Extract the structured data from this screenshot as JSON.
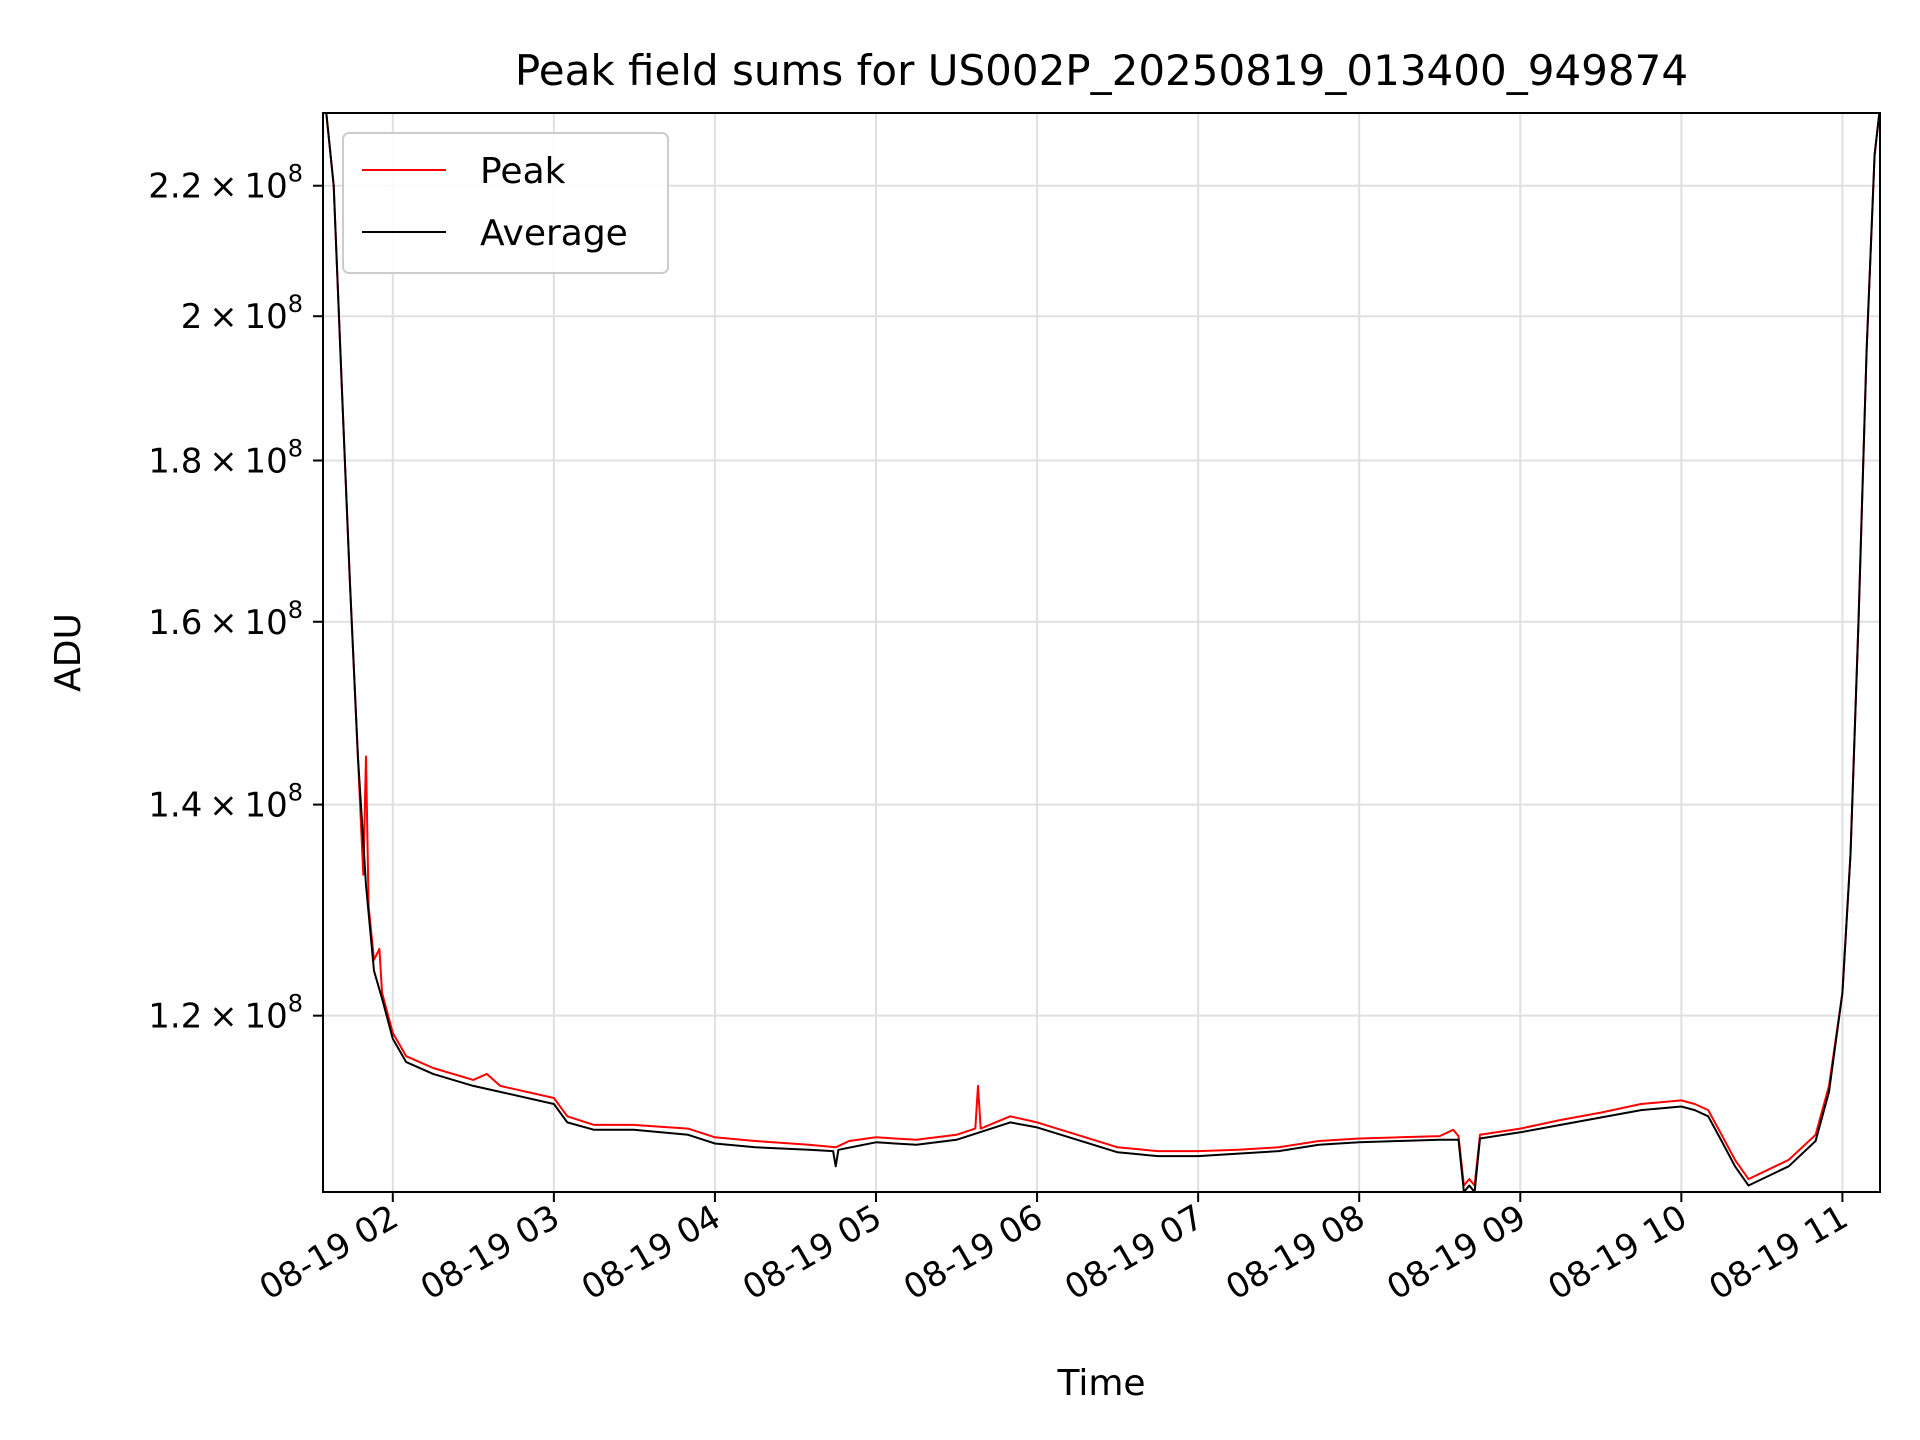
{
  "chart_data": {
    "type": "line",
    "title": "Peak field sums for US002P_20250819_013400_949874",
    "xlabel": "Time",
    "ylabel": "ADU",
    "y_scale": "log",
    "x_range": [
      "2025-08-19T01:34",
      "2025-08-19T11:14"
    ],
    "ylim": [
      105500000.0,
      232000000.0
    ],
    "x_ticks": [
      "08-19 02",
      "08-19 03",
      "08-19 04",
      "08-19 05",
      "08-19 06",
      "08-19 07",
      "08-19 08",
      "08-19 09",
      "08-19 10",
      "08-19 11"
    ],
    "x_tick_rotation_deg": 30,
    "y_ticks": [
      {
        "value": 120000000.0,
        "mant": "1.2",
        "exp": "8"
      },
      {
        "value": 140000000.0,
        "mant": "1.4",
        "exp": "8"
      },
      {
        "value": 160000000.0,
        "mant": "1.6",
        "exp": "8"
      },
      {
        "value": 180000000.0,
        "mant": "1.8",
        "exp": "8"
      },
      {
        "value": 200000000.0,
        "mant": "2",
        "exp": "8"
      },
      {
        "value": 220000000.0,
        "mant": "2.2",
        "exp": "8"
      }
    ],
    "grid": true,
    "legend_position": "top-left",
    "series": [
      {
        "name": "Peak",
        "color": "#ff0000",
        "points": [
          [
            "01:35",
            233000000.0
          ],
          [
            "01:38",
            220000000.0
          ],
          [
            "01:41",
            190000000.0
          ],
          [
            "01:44",
            165000000.0
          ],
          [
            "01:47",
            145000000.0
          ],
          [
            "01:49",
            133000000.0
          ],
          [
            "01:50",
            145000000.0
          ],
          [
            "01:51",
            130000000.0
          ],
          [
            "01:53",
            125000000.0
          ],
          [
            "01:55",
            126000000.0
          ],
          [
            "01:56",
            122000000.0
          ],
          [
            "02:00",
            118500000.0
          ],
          [
            "02:05",
            116500000.0
          ],
          [
            "02:15",
            115500000.0
          ],
          [
            "02:30",
            114500000.0
          ],
          [
            "02:35",
            115000000.0
          ],
          [
            "02:40",
            114000000.0
          ],
          [
            "03:00",
            113000000.0
          ],
          [
            "03:05",
            111500000.0
          ],
          [
            "03:15",
            110800000.0
          ],
          [
            "03:30",
            110800000.0
          ],
          [
            "03:50",
            110500000.0
          ],
          [
            "04:00",
            109800000.0
          ],
          [
            "04:15",
            109500000.0
          ],
          [
            "04:35",
            109200000.0
          ],
          [
            "04:45",
            109000000.0
          ],
          [
            "04:50",
            109500000.0
          ],
          [
            "05:00",
            109800000.0
          ],
          [
            "05:15",
            109600000.0
          ],
          [
            "05:30",
            110000000.0
          ],
          [
            "05:37",
            110500000.0
          ],
          [
            "05:38",
            114000000.0
          ],
          [
            "05:39",
            110500000.0
          ],
          [
            "05:50",
            111500000.0
          ],
          [
            "06:00",
            111000000.0
          ],
          [
            "06:15",
            110000000.0
          ],
          [
            "06:30",
            109000000.0
          ],
          [
            "06:45",
            108700000.0
          ],
          [
            "07:00",
            108700000.0
          ],
          [
            "07:15",
            108800000.0
          ],
          [
            "07:30",
            109000000.0
          ],
          [
            "07:45",
            109500000.0
          ],
          [
            "08:00",
            109700000.0
          ],
          [
            "08:15",
            109800000.0
          ],
          [
            "08:30",
            109900000.0
          ],
          [
            "08:35",
            110400000.0
          ],
          [
            "08:37",
            109900000.0
          ],
          [
            "08:39",
            106000000.0
          ],
          [
            "08:41",
            106500000.0
          ],
          [
            "08:43",
            106000000.0
          ],
          [
            "08:45",
            110000000.0
          ],
          [
            "09:00",
            110500000.0
          ],
          [
            "09:15",
            111200000.0
          ],
          [
            "09:30",
            111800000.0
          ],
          [
            "09:45",
            112500000.0
          ],
          [
            "10:00",
            112800000.0
          ],
          [
            "10:05",
            112500000.0
          ],
          [
            "10:10",
            112000000.0
          ],
          [
            "10:15",
            110000000.0
          ],
          [
            "10:20",
            108000000.0
          ],
          [
            "10:25",
            106500000.0
          ],
          [
            "10:30",
            107000000.0
          ],
          [
            "10:40",
            108000000.0
          ],
          [
            "10:50",
            110000000.0
          ],
          [
            "10:55",
            114000000.0
          ],
          [
            "11:00",
            122000000.0
          ],
          [
            "11:03",
            135000000.0
          ],
          [
            "11:06",
            160000000.0
          ],
          [
            "11:09",
            195000000.0
          ],
          [
            "11:12",
            225000000.0
          ],
          [
            "11:14",
            233000000.0
          ]
        ]
      },
      {
        "name": "Average",
        "color": "#000000",
        "points": [
          [
            "01:35",
            233000000.0
          ],
          [
            "01:38",
            220000000.0
          ],
          [
            "01:41",
            190000000.0
          ],
          [
            "01:44",
            165000000.0
          ],
          [
            "01:47",
            145000000.0
          ],
          [
            "01:50",
            132000000.0
          ],
          [
            "01:53",
            124000000.0
          ],
          [
            "01:56",
            121500000.0
          ],
          [
            "02:00",
            118000000.0
          ],
          [
            "02:05",
            116000000.0
          ],
          [
            "02:15",
            115000000.0
          ],
          [
            "02:30",
            114000000.0
          ],
          [
            "02:40",
            113500000.0
          ],
          [
            "03:00",
            112500000.0
          ],
          [
            "03:05",
            111000000.0
          ],
          [
            "03:15",
            110400000.0
          ],
          [
            "03:30",
            110400000.0
          ],
          [
            "03:50",
            110000000.0
          ],
          [
            "04:00",
            109300000.0
          ],
          [
            "04:15",
            109000000.0
          ],
          [
            "04:35",
            108800000.0
          ],
          [
            "04:44",
            108700000.0
          ],
          [
            "04:45",
            107500000.0
          ],
          [
            "04:46",
            108800000.0
          ],
          [
            "05:00",
            109400000.0
          ],
          [
            "05:15",
            109200000.0
          ],
          [
            "05:30",
            109600000.0
          ],
          [
            "05:50",
            111000000.0
          ],
          [
            "06:00",
            110600000.0
          ],
          [
            "06:15",
            109600000.0
          ],
          [
            "06:30",
            108600000.0
          ],
          [
            "06:45",
            108300000.0
          ],
          [
            "07:00",
            108300000.0
          ],
          [
            "07:15",
            108500000.0
          ],
          [
            "07:30",
            108700000.0
          ],
          [
            "07:45",
            109200000.0
          ],
          [
            "08:00",
            109400000.0
          ],
          [
            "08:15",
            109500000.0
          ],
          [
            "08:30",
            109600000.0
          ],
          [
            "08:37",
            109600000.0
          ],
          [
            "08:39",
            105500000.0
          ],
          [
            "08:41",
            106000000.0
          ],
          [
            "08:43",
            105500000.0
          ],
          [
            "08:45",
            109700000.0
          ],
          [
            "09:00",
            110200000.0
          ],
          [
            "09:15",
            110800000.0
          ],
          [
            "09:30",
            111400000.0
          ],
          [
            "09:45",
            112000000.0
          ],
          [
            "10:00",
            112300000.0
          ],
          [
            "10:05",
            112000000.0
          ],
          [
            "10:10",
            111500000.0
          ],
          [
            "10:15",
            109500000.0
          ],
          [
            "10:20",
            107500000.0
          ],
          [
            "10:25",
            106000000.0
          ],
          [
            "10:30",
            106500000.0
          ],
          [
            "10:40",
            107500000.0
          ],
          [
            "10:50",
            109500000.0
          ],
          [
            "10:55",
            113500000.0
          ],
          [
            "11:00",
            122000000.0
          ],
          [
            "11:03",
            135000000.0
          ],
          [
            "11:06",
            160000000.0
          ],
          [
            "11:09",
            195000000.0
          ],
          [
            "11:12",
            225000000.0
          ],
          [
            "11:14",
            233000000.0
          ]
        ]
      }
    ]
  }
}
